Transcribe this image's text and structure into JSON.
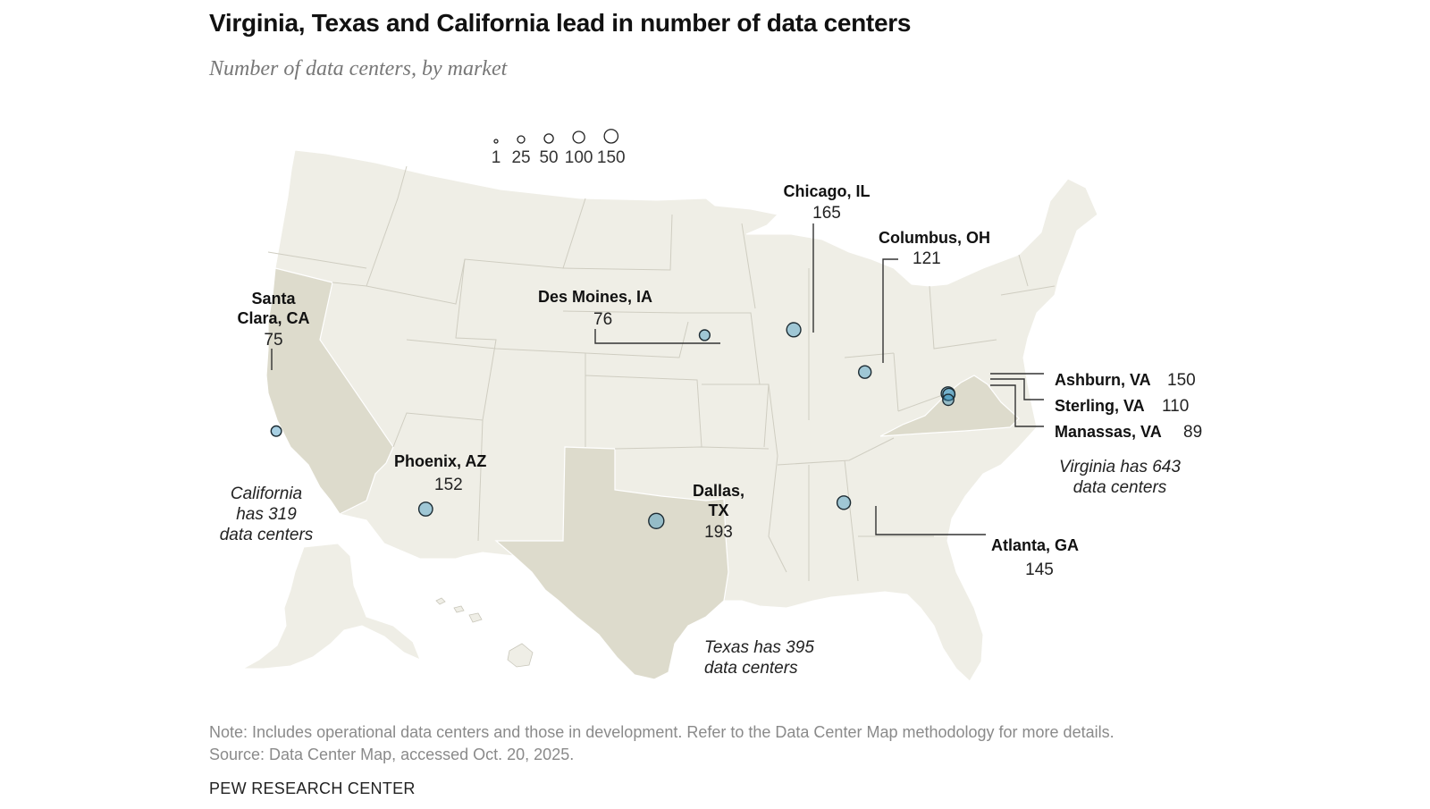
{
  "title": "Virginia, Texas and California lead in number of data centers",
  "subtitle": "Number of data centers, by market",
  "note": "Note: Includes operational data centers and those in development. Refer to the Data Center Map methodology for more details.",
  "source": "Source: Data Center Map, accessed Oct. 20, 2025.",
  "brand": "PEW RESEARCH CENTER",
  "colors": {
    "bubble": "#3d97c2",
    "bubble_dark": "#0e5b82",
    "land": "#efeee6",
    "highlight_state": "#dddbcc",
    "border": "#c9c7bb"
  },
  "legend": {
    "values": [
      1,
      25,
      50,
      100,
      150
    ],
    "labels": [
      "1",
      "25",
      "50",
      "100",
      "150"
    ]
  },
  "map_data": {
    "highlighted_states": [
      "California",
      "Texas",
      "Virginia"
    ],
    "markets": [
      {
        "name": "Chicago, IL",
        "value": "165",
        "lon": -87.7,
        "lat": 41.9
      },
      {
        "name": "Columbus, OH",
        "value": "121",
        "lon": -82.99,
        "lat": 39.96
      },
      {
        "name": "Des Moines, IA",
        "value": "76",
        "lon": -93.6,
        "lat": 41.6
      },
      {
        "name_line1": "Santa",
        "name_line2": "Clara, CA",
        "value": "75",
        "lon": -121.96,
        "lat": 37.35
      },
      {
        "name": "Phoenix, AZ",
        "value": "152",
        "lon": -112.07,
        "lat": 33.45
      },
      {
        "name_line1": "Dallas,",
        "name_line2": "TX",
        "value": "193",
        "lon": -96.8,
        "lat": 32.78
      },
      {
        "name": "Atlanta, GA",
        "value": "145",
        "lon": -84.39,
        "lat": 33.75
      },
      {
        "name": "Ashburn, VA",
        "value": "150",
        "lon": -77.49,
        "lat": 39.04
      },
      {
        "name": "Sterling, VA",
        "value": "110",
        "lon": -77.43,
        "lat": 39.01
      },
      {
        "name": "Manassas, VA",
        "value": "89",
        "lon": -77.47,
        "lat": 38.75
      }
    ],
    "state_notes": {
      "california": [
        "California",
        "has 319",
        "data centers"
      ],
      "texas": [
        "Texas has 395",
        "data centers"
      ],
      "virginia": [
        "Virginia has 643",
        "data centers"
      ]
    }
  }
}
